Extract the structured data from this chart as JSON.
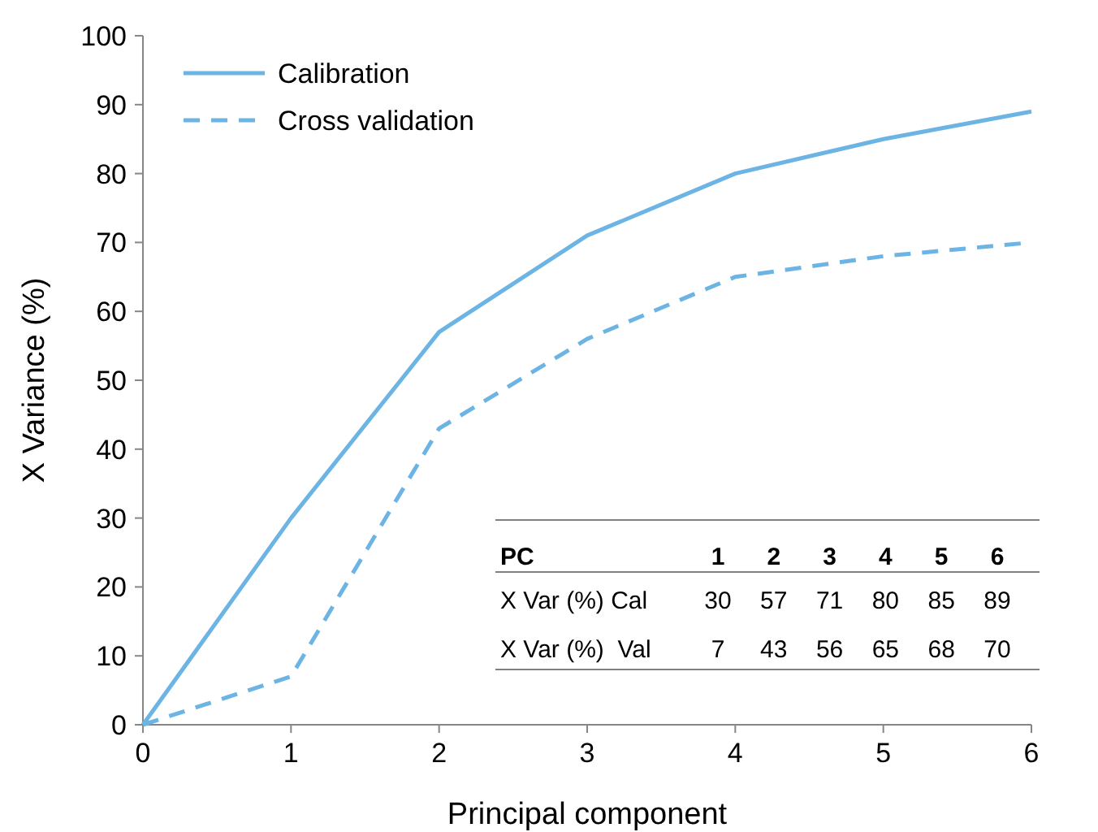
{
  "chart_data": {
    "type": "line",
    "xlabel": "Principal component",
    "ylabel": "X Variance (%)",
    "x": [
      0,
      1,
      2,
      3,
      4,
      5,
      6
    ],
    "series": [
      {
        "name": "Calibration",
        "color": "#6cb4e4",
        "line_style": "solid",
        "values": [
          0,
          30,
          57,
          71,
          80,
          85,
          89
        ]
      },
      {
        "name": "Cross validation",
        "color": "#6cb4e4",
        "line_style": "dashed",
        "values": [
          0,
          7,
          43,
          56,
          65,
          68,
          70
        ]
      }
    ],
    "annotations": [
      "PC\t1\t2\t3\t4\t5\t6",
      "X Var (%) Cal\t30\t57\t71\t80\t85\t89",
      "X Var (%)  Val\t7\t43\t56\t65\t68\t70"
    ],
    "xlim": [
      0,
      6
    ],
    "xticks": [
      0,
      1,
      2,
      3,
      4,
      5,
      6
    ],
    "ylim": [
      0,
      100
    ],
    "yticks": [
      0,
      10,
      20,
      30,
      40,
      50,
      60,
      70,
      80,
      90,
      100
    ],
    "grid": false,
    "legend": "top left"
  }
}
